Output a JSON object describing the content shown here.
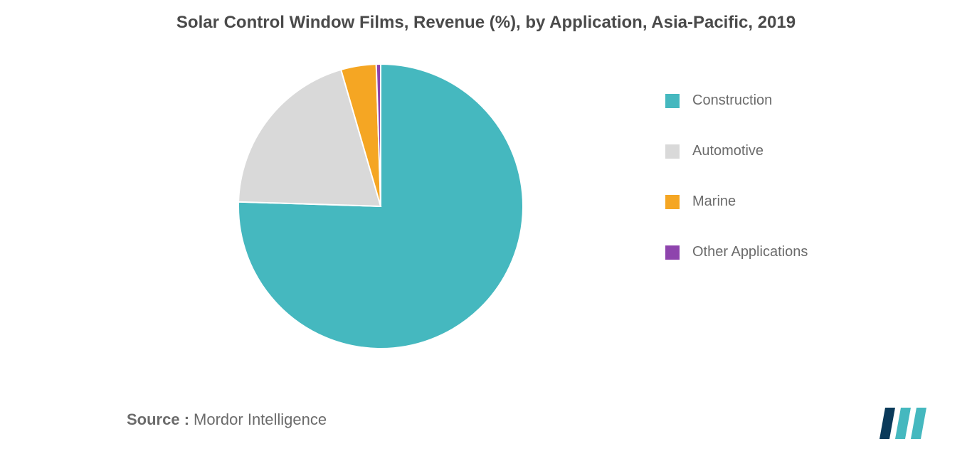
{
  "chart": {
    "type": "pie",
    "title": "Solar Control Window Films, Revenue (%), by Application, Asia-Pacific, 2019",
    "title_fontsize": 24,
    "title_color": "#4a4a4a",
    "background_color": "#ffffff",
    "radius": 200,
    "stroke_color": "#ffffff",
    "stroke_width": 2,
    "start_angle_deg": 0,
    "slices": [
      {
        "label": "Construction",
        "value": 75.5,
        "color": "#45b8bf"
      },
      {
        "label": "Automotive",
        "value": 20.0,
        "color": "#d9d9d9"
      },
      {
        "label": "Marine",
        "value": 4.0,
        "color": "#f5a623"
      },
      {
        "label": "Other Applications",
        "value": 0.5,
        "color": "#8e44ad"
      }
    ],
    "legend": {
      "fontsize": 20,
      "color": "#6b6b6b",
      "swatch_size": 20,
      "gap": 48
    }
  },
  "footer": {
    "source_label": "Source :",
    "source_text": "Mordor Intelligence",
    "fontsize": 22,
    "color": "#6b6b6b"
  },
  "logo": {
    "bars": [
      {
        "color": "#0a3a5a"
      },
      {
        "color": "#45b8bf"
      },
      {
        "color": "#45b8bf"
      }
    ]
  }
}
